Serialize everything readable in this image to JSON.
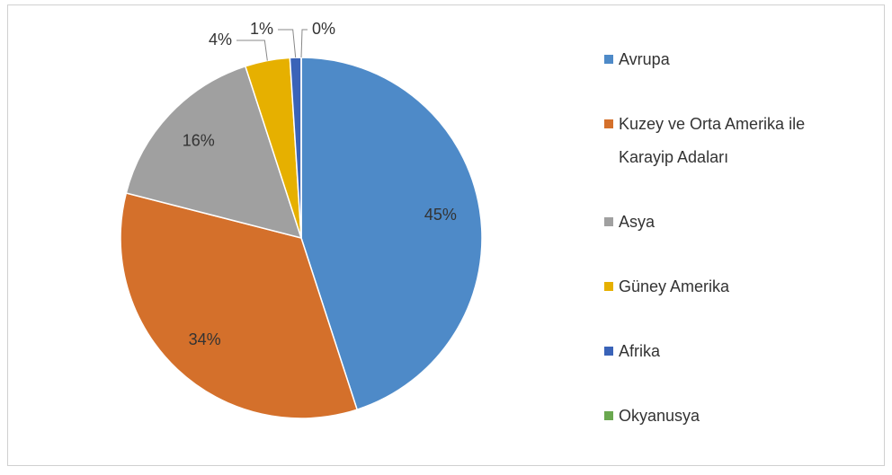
{
  "chart_data": {
    "type": "pie",
    "categories": [
      "Avrupa",
      "Kuzey ve Orta Amerika ile Karayip Adaları",
      "Asya",
      "Güney Amerika",
      "Afrika",
      "Okyanusya"
    ],
    "values": [
      45,
      34,
      16,
      4,
      1,
      0
    ],
    "value_labels": [
      "45%",
      "34%",
      "16%",
      "4%",
      "1%",
      "0%"
    ],
    "colors": [
      "#4e8ac8",
      "#d4702b",
      "#a0a0a0",
      "#e6b000",
      "#3a63b8",
      "#6aa84f"
    ],
    "legend": "right"
  }
}
